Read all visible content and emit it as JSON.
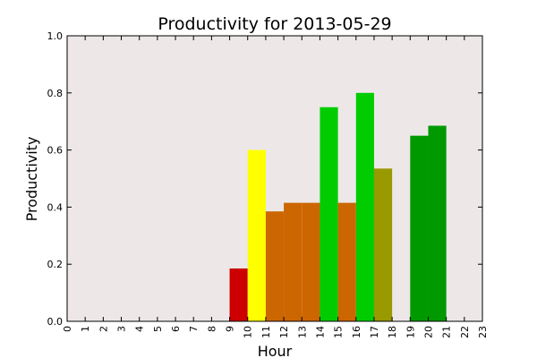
{
  "chart_data": {
    "type": "bar",
    "title": "Productivity for 2013-05-29",
    "xlabel": "Hour",
    "ylabel": "Productivity",
    "ylim": [
      0,
      1.0
    ],
    "xlim": [
      0,
      23
    ],
    "x_ticks": [
      "0",
      "1",
      "2",
      "3",
      "4",
      "5",
      "6",
      "7",
      "8",
      "9",
      "10",
      "11",
      "12",
      "13",
      "14",
      "15",
      "16",
      "17",
      "18",
      "19",
      "20",
      "21",
      "22",
      "23"
    ],
    "y_ticks": [
      "0.0",
      "0.2",
      "0.4",
      "0.6",
      "0.8",
      "1.0"
    ],
    "y_tick_values": [
      0.0,
      0.2,
      0.4,
      0.6,
      0.8,
      1.0
    ],
    "plot_background": "#ede8e7",
    "grid": false,
    "bars": [
      {
        "x": 9,
        "value": 0.185,
        "color": "#cc0000"
      },
      {
        "x": 10,
        "value": 0.6,
        "color": "#ffff00"
      },
      {
        "x": 11,
        "value": 0.385,
        "color": "#cc6600"
      },
      {
        "x": 12,
        "value": 0.415,
        "color": "#cc6600"
      },
      {
        "x": 13,
        "value": 0.415,
        "color": "#cc6600"
      },
      {
        "x": 14,
        "value": 0.75,
        "color": "#00cc00"
      },
      {
        "x": 15,
        "value": 0.415,
        "color": "#cc6600"
      },
      {
        "x": 16,
        "value": 0.8,
        "color": "#00cc00"
      },
      {
        "x": 17,
        "value": 0.535,
        "color": "#999900"
      },
      {
        "x": 19,
        "value": 0.65,
        "color": "#009900"
      },
      {
        "x": 20,
        "value": 0.685,
        "color": "#009900"
      }
    ]
  }
}
